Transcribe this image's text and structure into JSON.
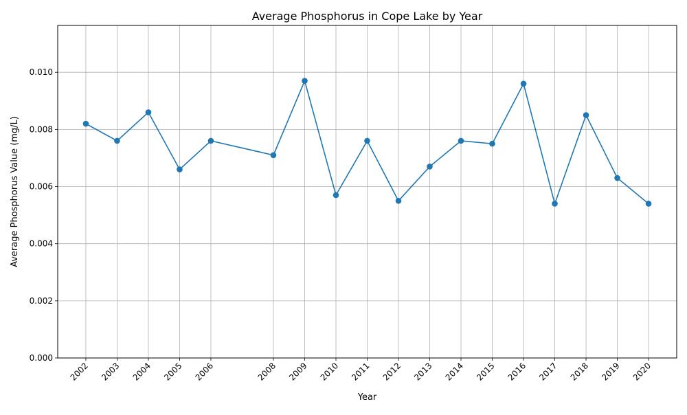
{
  "chart_data": {
    "type": "line",
    "title": "Average Phosphorus in Cope Lake by Year",
    "xlabel": "Year",
    "ylabel": "Average Phosphorus Value (mg/L)",
    "x": [
      2002,
      2003,
      2004,
      2005,
      2006,
      2008,
      2009,
      2010,
      2011,
      2012,
      2013,
      2014,
      2015,
      2016,
      2017,
      2018,
      2019,
      2020
    ],
    "series": [
      {
        "values": [
          0.0082,
          0.0076,
          0.0086,
          0.0066,
          0.0076,
          0.0071,
          0.0097,
          0.0057,
          0.0076,
          0.0055,
          0.0067,
          0.0076,
          0.0075,
          0.0096,
          0.0054,
          0.0085,
          0.0063,
          0.0054
        ],
        "color": "#1f77b4",
        "marker": "circle"
      }
    ],
    "xlim": [
      2001.1,
      2020.9
    ],
    "ylim": [
      0,
      0.01164
    ],
    "yticks": [
      "0.000",
      "0.002",
      "0.004",
      "0.006",
      "0.008",
      "0.010"
    ],
    "ytick_values": [
      0,
      0.002,
      0.004,
      0.006,
      0.008,
      0.01
    ],
    "xtick_labels": [
      "2002",
      "2003",
      "2004",
      "2005",
      "2006",
      "2008",
      "2009",
      "2010",
      "2011",
      "2012",
      "2013",
      "2014",
      "2015",
      "2016",
      "2017",
      "2018",
      "2019",
      "2020"
    ],
    "grid": true,
    "legend": "none"
  }
}
